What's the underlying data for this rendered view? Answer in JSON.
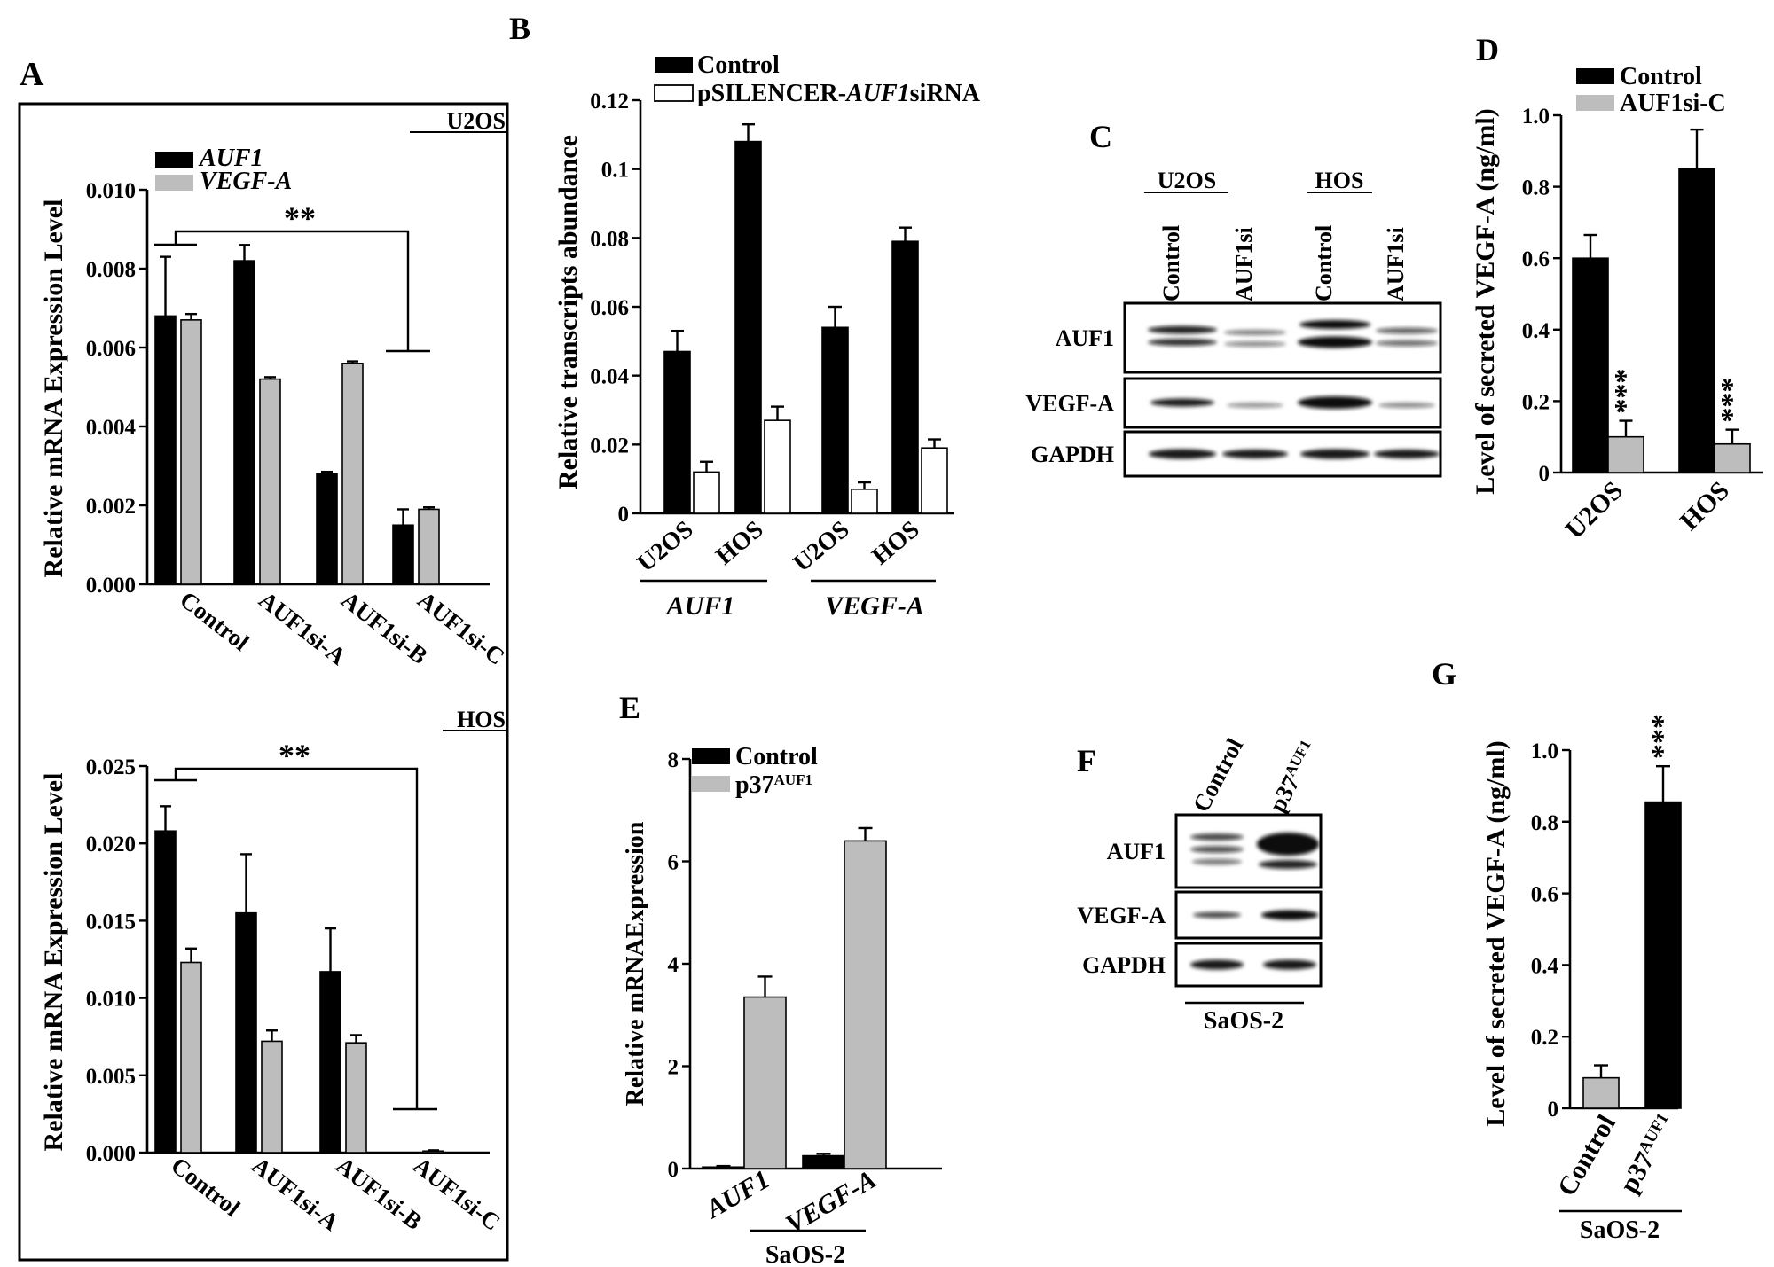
{
  "colors": {
    "black": "#000000",
    "gray": "#bdbdbd",
    "white": "#ffffff"
  },
  "panels": {
    "A": {
      "label": "A"
    },
    "B": {
      "label": "B"
    },
    "C": {
      "label": "C"
    },
    "D": {
      "label": "D"
    },
    "E": {
      "label": "E"
    },
    "F": {
      "label": "F"
    },
    "G": {
      "label": "G"
    }
  },
  "chart_data": [
    {
      "id": "A1",
      "type": "bar",
      "panel": "A",
      "tag": "U2OS",
      "ylabel": "Relative mRNA Expression Level",
      "ylim": [
        0,
        0.01
      ],
      "yticks": [
        "0.000",
        "0.002",
        "0.004",
        "0.006",
        "0.008",
        "0.010"
      ],
      "categories": [
        "Control",
        "AUF1si-A",
        "AUF1si-B",
        "AUF1si-C"
      ],
      "legend": "top-left",
      "series": [
        {
          "name": "AUF1",
          "color": "#000000",
          "values": [
            0.0068,
            0.0082,
            0.0028,
            0.0015
          ],
          "errors": [
            0.0015,
            0.0004,
            5e-05,
            0.0004
          ]
        },
        {
          "name": "VEGF-A",
          "color": "#bdbdbd",
          "values": [
            0.0067,
            0.0052,
            0.0056,
            0.0019
          ],
          "errors": [
            0.00015,
            5e-05,
            5e-05,
            5e-05
          ]
        }
      ],
      "significance": "**"
    },
    {
      "id": "A2",
      "type": "bar",
      "panel": "A",
      "tag": "HOS",
      "ylabel": "Relative mRNA Expression Level",
      "ylim": [
        0,
        0.025
      ],
      "yticks": [
        "0.000",
        "0.005",
        "0.010",
        "0.015",
        "0.020",
        "0.025"
      ],
      "categories": [
        "Control",
        "AUF1si-A",
        "AUF1si-B",
        "AUF1si-C"
      ],
      "series": [
        {
          "name": "AUF1",
          "color": "#000000",
          "values": [
            0.0208,
            0.0155,
            0.0117,
            0
          ],
          "errors": [
            0.0016,
            0.0038,
            0.0028,
            0
          ]
        },
        {
          "name": "VEGF-A",
          "color": "#bdbdbd",
          "values": [
            0.0123,
            0.0072,
            0.0071,
            0.0001
          ],
          "errors": [
            0.0009,
            0.0007,
            0.0005,
            5e-05
          ]
        }
      ],
      "significance": "**"
    },
    {
      "id": "B",
      "type": "bar",
      "panel": "B",
      "ylabel": "Relative transcripts abundance",
      "ylim": [
        0,
        0.12
      ],
      "yticks": [
        "0",
        "0.02",
        "0.04",
        "0.06",
        "0.08",
        "0.1",
        "0.12"
      ],
      "categories": [
        "U2OS",
        "HOS",
        "U2OS",
        "HOS"
      ],
      "groups": [
        "AUF1",
        "VEGF-A"
      ],
      "legend": "top-left",
      "series": [
        {
          "name": "Control",
          "color": "#000000",
          "values": [
            0.047,
            0.108,
            0.054,
            0.079
          ],
          "errors": [
            0.006,
            0.005,
            0.006,
            0.004
          ]
        },
        {
          "name": "pSILENCER-AUF1siRNA",
          "name_parts": [
            "pSILENCER-",
            "AUF1",
            "siRNA"
          ],
          "color": "#ffffff",
          "values": [
            0.012,
            0.027,
            0.007,
            0.019
          ],
          "errors": [
            0.003,
            0.004,
            0.002,
            0.0025
          ]
        }
      ]
    },
    {
      "id": "D",
      "type": "bar",
      "panel": "D",
      "ylabel": "Level of secreted VEGF-A (ng/ml)",
      "ylim": [
        0,
        1.0
      ],
      "yticks": [
        "0",
        "0.2",
        "0.4",
        "0.6",
        "0.8",
        "1.0"
      ],
      "categories": [
        "U2OS",
        "HOS"
      ],
      "legend": "top-left",
      "series": [
        {
          "name": "Control",
          "color": "#000000",
          "values": [
            0.6,
            0.85
          ],
          "errors": [
            0.065,
            0.11
          ]
        },
        {
          "name": "AUF1si-C",
          "color": "#bdbdbd",
          "values": [
            0.1,
            0.08
          ],
          "errors": [
            0.045,
            0.04
          ],
          "significance": [
            "***",
            "***"
          ]
        }
      ]
    },
    {
      "id": "E",
      "type": "bar",
      "panel": "E",
      "ylabel": "Relative mRNAExpression",
      "ylim": [
        0,
        8
      ],
      "yticks": [
        "0",
        "2",
        "4",
        "6",
        "8"
      ],
      "categories": [
        "AUF1",
        "VEGF-A"
      ],
      "group_label": "SaOS-2",
      "legend": "top-left",
      "series": [
        {
          "name": "Control",
          "color": "#000000",
          "values": [
            0.03,
            0.25
          ],
          "errors": [
            0.02,
            0.04
          ]
        },
        {
          "name": "p37",
          "superscript": "AUF1",
          "color": "#bdbdbd",
          "values": [
            3.35,
            6.4
          ],
          "errors": [
            0.4,
            0.25
          ]
        }
      ]
    },
    {
      "id": "G",
      "type": "bar",
      "panel": "G",
      "ylabel": "Level of secreted VEGF-A (ng/ml)",
      "ylim": [
        0,
        1.0
      ],
      "yticks": [
        "0",
        "0.2",
        "0.4",
        "0.6",
        "0.8",
        "1.0"
      ],
      "categories": [
        "Control",
        "p37"
      ],
      "category_superscripts": [
        "",
        "AUF1"
      ],
      "group_label": "SaOS-2",
      "bar_colors": [
        "#bdbdbd",
        "#000000"
      ],
      "values": [
        0.085,
        0.855
      ],
      "errors": [
        0.035,
        0.1
      ],
      "significance": [
        "",
        "***"
      ]
    }
  ],
  "blots": {
    "C": {
      "group_labels": [
        "U2OS",
        "HOS"
      ],
      "lanes": [
        "Control",
        "AUF1si",
        "Control",
        "AUF1si"
      ],
      "rows": [
        "AUF1",
        "VEGF-A",
        "GAPDH"
      ]
    },
    "F": {
      "lanes": [
        "Control",
        "p37"
      ],
      "lane_superscripts": [
        "",
        "AUF1"
      ],
      "rows": [
        "AUF1",
        "VEGF-A",
        "GAPDH"
      ],
      "group_label": "SaOS-2"
    }
  }
}
